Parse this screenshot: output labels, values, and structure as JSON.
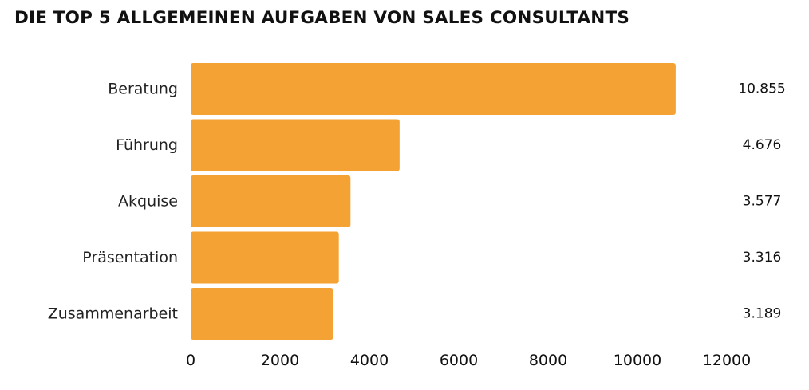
{
  "chart_data": {
    "type": "bar",
    "orientation": "horizontal",
    "title": "DIE TOP 5 ALLGEMEINEN AUFGABEN VON SALES CONSULTANTS",
    "categories": [
      "Beratung",
      "Führung",
      "Akquise",
      "Präsentation",
      "Zusammenarbeit"
    ],
    "values": [
      10855,
      4676,
      3577,
      3316,
      3189
    ],
    "value_labels": [
      "10.855",
      "4.676",
      "3.577",
      "3.316",
      "3.189"
    ],
    "xlim": [
      0,
      12000
    ],
    "x_ticks": [
      0,
      2000,
      4000,
      6000,
      8000,
      10000,
      12000
    ],
    "x_tick_labels": [
      "0",
      "2000",
      "4000",
      "6000",
      "8000",
      "10000",
      "12000"
    ],
    "bar_color": "#F4A233",
    "grid": false,
    "legend": "none"
  }
}
